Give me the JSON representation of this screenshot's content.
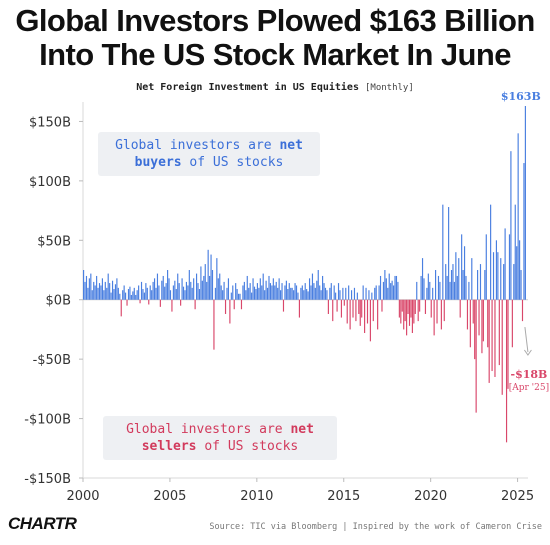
{
  "title": {
    "line1": "Global Investors Plowed $163 Billion",
    "line2": "Into The US Stock Market In June"
  },
  "subtitle": {
    "main": "Net Foreign Investment in US Equities",
    "note": "[Monthly]"
  },
  "annotations": {
    "buyers": {
      "pre": "Global investors are ",
      "bold1": "net",
      "bold2": "buyers",
      "post": " of US stocks"
    },
    "sellers": {
      "pre": "Global investors are ",
      "bold1": "net",
      "bold2": "sellers",
      "post": " of US stocks"
    },
    "peak_label": "$163B",
    "low_label": "-$18B",
    "low_date": "[Apr '25]"
  },
  "footer": {
    "logo": "CHARTR",
    "source": "Source: TIC via Bloomberg | Inspired by the work of Cameron Crise"
  },
  "colors": {
    "positive": "#4a7fe0",
    "negative": "#d9476a",
    "zero_line": "#cfcfcf",
    "grid": "#ececec"
  },
  "chart_data": {
    "type": "bar",
    "title": "Net Foreign Investment in US Equities",
    "ylim": [
      -150,
      163
    ],
    "yticks": [
      -150,
      -100,
      -50,
      0,
      50,
      100,
      150
    ],
    "ytick_labels": [
      "-$150B",
      "-$100B",
      "-$50B",
      "$0B",
      "$50B",
      "$100B",
      "$150B"
    ],
    "xticks": [
      2000,
      2005,
      2010,
      2015,
      2020,
      2025
    ],
    "xtick_labels": [
      "2000",
      "2005",
      "2010",
      "2015",
      "2020",
      "2025"
    ],
    "x_start": 2000,
    "grid": false,
    "years": [
      {
        "year": 2000,
        "values": [
          25,
          15,
          20,
          10,
          18,
          22,
          8,
          15,
          12,
          20,
          10,
          14
        ]
      },
      {
        "year": 2001,
        "values": [
          12,
          18,
          8,
          15,
          10,
          22,
          14,
          6,
          16,
          9,
          13,
          18
        ]
      },
      {
        "year": 2002,
        "values": [
          10,
          5,
          -14,
          8,
          12,
          6,
          -5,
          9,
          11,
          4,
          7,
          10
        ]
      },
      {
        "year": 2003,
        "values": [
          4,
          8,
          12,
          -3,
          15,
          9,
          6,
          14,
          10,
          -4,
          12,
          8
        ]
      },
      {
        "year": 2004,
        "values": [
          15,
          18,
          10,
          22,
          12,
          -6,
          16,
          20,
          11,
          14,
          25,
          18
        ]
      },
      {
        "year": 2005,
        "values": [
          8,
          -10,
          12,
          16,
          9,
          22,
          14,
          -5,
          18,
          11,
          8,
          15
        ]
      },
      {
        "year": 2006,
        "values": [
          12,
          25,
          15,
          10,
          18,
          -8,
          22,
          14,
          9,
          28,
          16,
          20
        ]
      },
      {
        "year": 2007,
        "values": [
          30,
          15,
          42,
          20,
          38,
          25,
          -42,
          10,
          35,
          18,
          22,
          12
        ]
      },
      {
        "year": 2008,
        "values": [
          8,
          15,
          -12,
          10,
          18,
          -20,
          6,
          12,
          -8,
          14,
          9,
          5
        ]
      },
      {
        "year": 2009,
        "values": [
          5,
          -8,
          12,
          15,
          8,
          20,
          10,
          14,
          6,
          18,
          11,
          9
        ]
      },
      {
        "year": 2010,
        "values": [
          14,
          10,
          18,
          12,
          22,
          8,
          16,
          10,
          20,
          14,
          12,
          18
        ]
      },
      {
        "year": 2011,
        "values": [
          12,
          15,
          10,
          18,
          8,
          14,
          -10,
          12,
          16,
          9,
          14,
          10
        ]
      },
      {
        "year": 2012,
        "values": [
          10,
          8,
          14,
          12,
          6,
          -15,
          10,
          12,
          8,
          14,
          9,
          7
        ]
      },
      {
        "year": 2013,
        "values": [
          18,
          12,
          22,
          14,
          10,
          16,
          25,
          12,
          8,
          20,
          14,
          10
        ]
      },
      {
        "year": 2014,
        "values": [
          8,
          -12,
          10,
          14,
          -18,
          12,
          6,
          -10,
          14,
          8,
          -15,
          10
        ]
      },
      {
        "year": 2015,
        "values": [
          -5,
          10,
          -20,
          12,
          -25,
          8,
          -15,
          10,
          -18,
          6,
          -12,
          -22
        ]
      },
      {
        "year": 2016,
        "values": [
          -15,
          12,
          -28,
          10,
          -20,
          8,
          -35,
          6,
          -18,
          10,
          12,
          -25
        ]
      },
      {
        "year": 2017,
        "values": [
          12,
          20,
          -10,
          15,
          25,
          18,
          10,
          22,
          14,
          16,
          12,
          20
        ]
      },
      {
        "year": 2018,
        "values": [
          20,
          15,
          -15,
          -20,
          -10,
          -25,
          -18,
          -30,
          -12,
          -22,
          -15,
          -28
        ]
      },
      {
        "year": 2019,
        "values": [
          -20,
          -12,
          15,
          -18,
          -10,
          20,
          35,
          18,
          -12,
          10,
          22,
          15
        ]
      },
      {
        "year": 2020,
        "values": [
          -15,
          10,
          -30,
          25,
          -20,
          20,
          15,
          -25,
          80,
          -18,
          30,
          20
        ]
      },
      {
        "year": 2021,
        "values": [
          78,
          15,
          25,
          30,
          15,
          40,
          20,
          35,
          -15,
          55,
          25,
          45
        ]
      },
      {
        "year": 2022,
        "values": [
          20,
          -25,
          15,
          -40,
          35,
          -20,
          -50,
          -95,
          25,
          -30,
          30,
          -45
        ]
      },
      {
        "year": 2023,
        "values": [
          -35,
          25,
          55,
          -40,
          -70,
          80,
          -60,
          40,
          -65,
          50,
          40,
          -55
        ]
      },
      {
        "year": 2024,
        "values": [
          35,
          -80,
          30,
          60,
          -120,
          -75,
          55,
          125,
          -40,
          30,
          80,
          45
        ]
      },
      {
        "year": 2025,
        "values": [
          140,
          50,
          25,
          -18,
          115,
          163
        ]
      }
    ]
  }
}
